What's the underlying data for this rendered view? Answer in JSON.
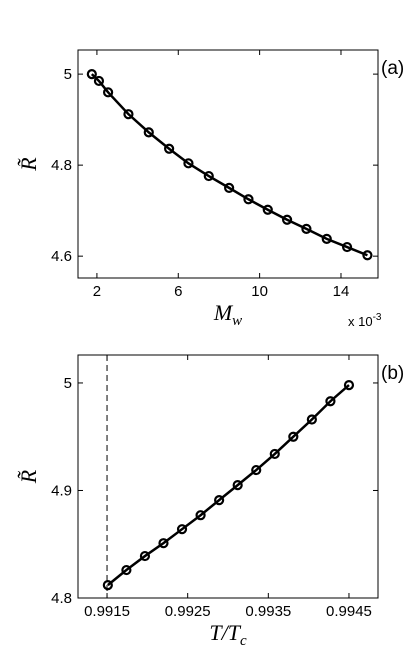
{
  "chart_data": [
    {
      "type": "line",
      "panel_label": "(a)",
      "xlabel": {
        "main": "M",
        "sub": "w"
      },
      "ylabel": "R̃",
      "x_multiplier": {
        "base": "x 10",
        "exponent": "-3"
      },
      "series": [
        {
          "color": "#000000",
          "marker": "circle",
          "x": [
            1.75,
            2.1,
            2.55,
            3.55,
            4.55,
            5.55,
            6.5,
            7.5,
            8.5,
            9.45,
            10.4,
            11.35,
            12.3,
            13.3,
            14.3,
            15.3
          ],
          "values": [
            5.0,
            4.985,
            4.96,
            4.912,
            4.872,
            4.836,
            4.804,
            4.776,
            4.75,
            4.725,
            4.702,
            4.68,
            4.66,
            4.638,
            4.62,
            4.602
          ]
        }
      ],
      "xlim": [
        1.07,
        15.82
      ],
      "xticks": [
        2,
        6,
        10,
        14
      ],
      "ylim": [
        4.552,
        5.053
      ],
      "yticks": [
        4.6,
        4.8,
        5
      ]
    },
    {
      "type": "line",
      "panel_label": "(b)",
      "xlabel": {
        "main": "T/T",
        "sub": "c"
      },
      "ylabel": "R̃",
      "vline": 0.9915,
      "series": [
        {
          "color": "#000000",
          "marker": "circle",
          "x": [
            0.99151,
            0.99174,
            0.99197,
            0.9922,
            0.99243,
            0.99266,
            0.99289,
            0.99312,
            0.99335,
            0.99358,
            0.99381,
            0.99404,
            0.99427,
            0.9945
          ],
          "values": [
            4.812,
            4.826,
            4.839,
            4.851,
            4.864,
            4.877,
            4.891,
            4.905,
            4.919,
            4.934,
            4.95,
            4.966,
            4.983,
            4.998
          ]
        }
      ],
      "xlim": [
        0.99114,
        0.99486
      ],
      "xticks": [
        0.9915,
        0.9925,
        0.9935,
        0.9945
      ],
      "ylim": [
        4.8,
        5.026
      ],
      "yticks": [
        4.8,
        4.9,
        5
      ]
    }
  ]
}
